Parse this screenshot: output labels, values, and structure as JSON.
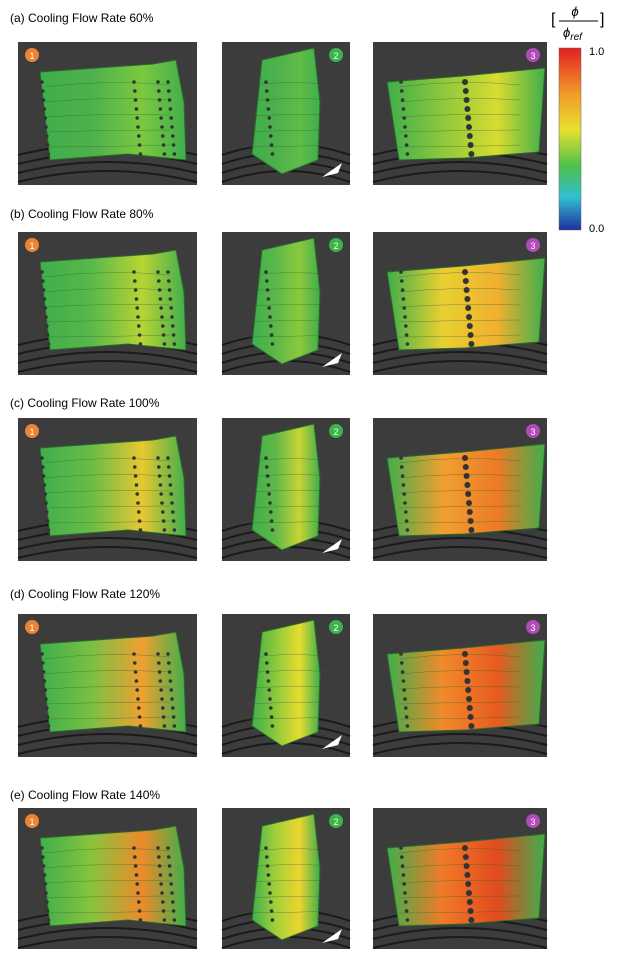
{
  "figure": {
    "rows": [
      {
        "label": "(a) Cooling Flow Rate 60%",
        "badges": [
          "1",
          "2",
          "3"
        ]
      },
      {
        "label": "(b) Cooling Flow Rate 80%",
        "badges": [
          "1",
          "2",
          "3"
        ]
      },
      {
        "label": "(c) Cooling Flow Rate 100%",
        "badges": [
          "1",
          "2",
          "3"
        ]
      },
      {
        "label": "(d) Cooling Flow Rate 120%",
        "badges": [
          "1",
          "2",
          "3"
        ]
      },
      {
        "label": "(e) Cooling Flow Rate 140%",
        "badges": [
          "1",
          "2",
          "3"
        ]
      }
    ],
    "colorbar": {
      "numerator": "ϕ",
      "denominator": "ϕ",
      "denominator_sub": "ref",
      "max_label": "1.0",
      "min_label": "0.0"
    }
  }
}
